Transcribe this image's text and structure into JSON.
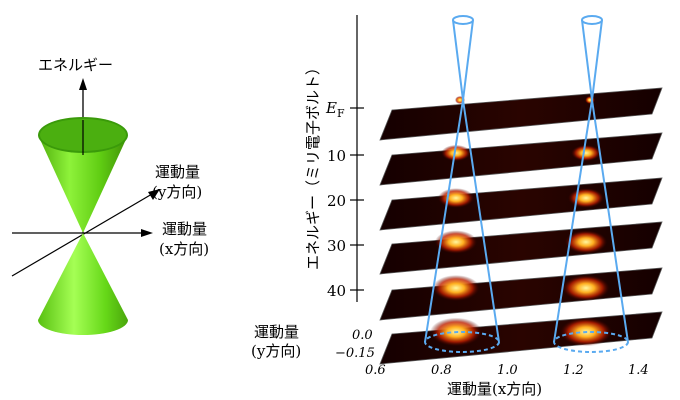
{
  "left_diagram": {
    "energy_label": "エネルギー",
    "momentum_y_label": [
      "運動量",
      "(y方向)"
    ],
    "momentum_x_label": [
      "運動量",
      "(x方向)"
    ],
    "cone_color": "#66dd11"
  },
  "right_panel": {
    "energy_axis_label": "エネルギー（ミリ電子ボルト）",
    "energy_ticks": [
      "E_F",
      "10",
      "20",
      "30",
      "40"
    ],
    "ef_label": "E",
    "ef_sub": "F",
    "ky_label": [
      "運動量",
      "(y方向)"
    ],
    "ky_ticks": [
      "0.0",
      "−0.15"
    ],
    "kx_ticks": [
      "0.6",
      "0.8",
      "1.0",
      "1.2",
      "1.4"
    ],
    "kx_label": "運動量(x方向)",
    "cone_outline_color": "#5aaaf0",
    "slice_colors": {
      "background": "#1a0000",
      "hot": "#ffee66",
      "warm": "#ff5500"
    }
  }
}
